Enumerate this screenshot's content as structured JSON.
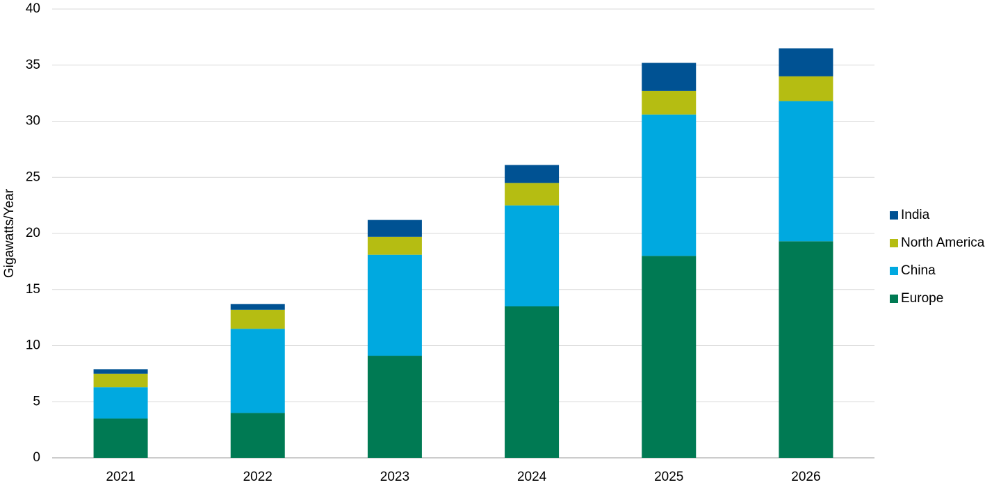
{
  "chart_data": {
    "type": "stacked_bar",
    "y_label": "Gigawatts/Year",
    "categories": [
      "2021",
      "2022",
      "2023",
      "2024",
      "2025",
      "2026"
    ],
    "series": [
      {
        "name": "Europe",
        "color": "#007a53",
        "values": [
          3.5,
          4.0,
          9.1,
          13.5,
          18.0,
          19.3
        ]
      },
      {
        "name": "China",
        "color": "#00a9e0",
        "values": [
          2.8,
          7.5,
          9.0,
          9.0,
          12.6,
          12.5
        ]
      },
      {
        "name": "North America",
        "color": "#b5bd12",
        "values": [
          1.2,
          1.7,
          1.6,
          2.0,
          2.1,
          2.2
        ]
      },
      {
        "name": "India",
        "color": "#005293",
        "values": [
          0.4,
          0.5,
          1.5,
          1.6,
          2.5,
          2.5
        ]
      }
    ],
    "ylim": [
      0,
      40
    ],
    "yticks": [
      0,
      5,
      10,
      15,
      20,
      25,
      30,
      35,
      40
    ],
    "grid": true,
    "legend": "right"
  }
}
